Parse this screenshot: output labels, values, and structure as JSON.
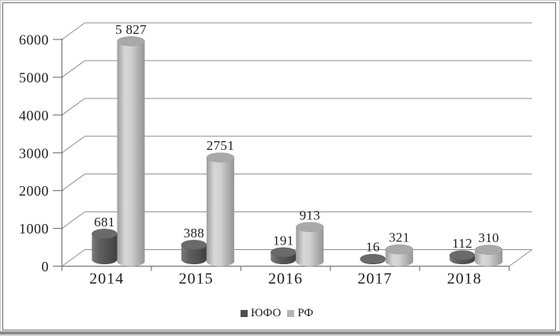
{
  "chart_data": {
    "type": "bar",
    "subtype": "3d-cylinder",
    "title": "",
    "categories": [
      "2014",
      "2015",
      "2016",
      "2017",
      "2018"
    ],
    "series": [
      {
        "name": "ЮФО",
        "color": "#4f4f4f",
        "values": [
          681,
          388,
          191,
          16,
          112
        ],
        "value_labels": [
          "681",
          "388",
          "191",
          "16",
          "112"
        ]
      },
      {
        "name": "РФ",
        "color": "#b5b5b5",
        "values": [
          5827,
          2751,
          913,
          321,
          310
        ],
        "value_labels": [
          "5 827",
          "2751",
          "913",
          "321",
          "310"
        ]
      }
    ],
    "ylim": [
      0,
      6000
    ],
    "ytick_step": 1000,
    "ytick_labels": [
      "0",
      "1000",
      "2000",
      "3000",
      "4000",
      "5000",
      "6000"
    ],
    "xlabel": "",
    "ylabel": "",
    "grid": true,
    "legend_position": "bottom-center",
    "background": "#ffffff",
    "gridline_color": "#8f8f8f",
    "axis_color": "#7a7a7a"
  }
}
